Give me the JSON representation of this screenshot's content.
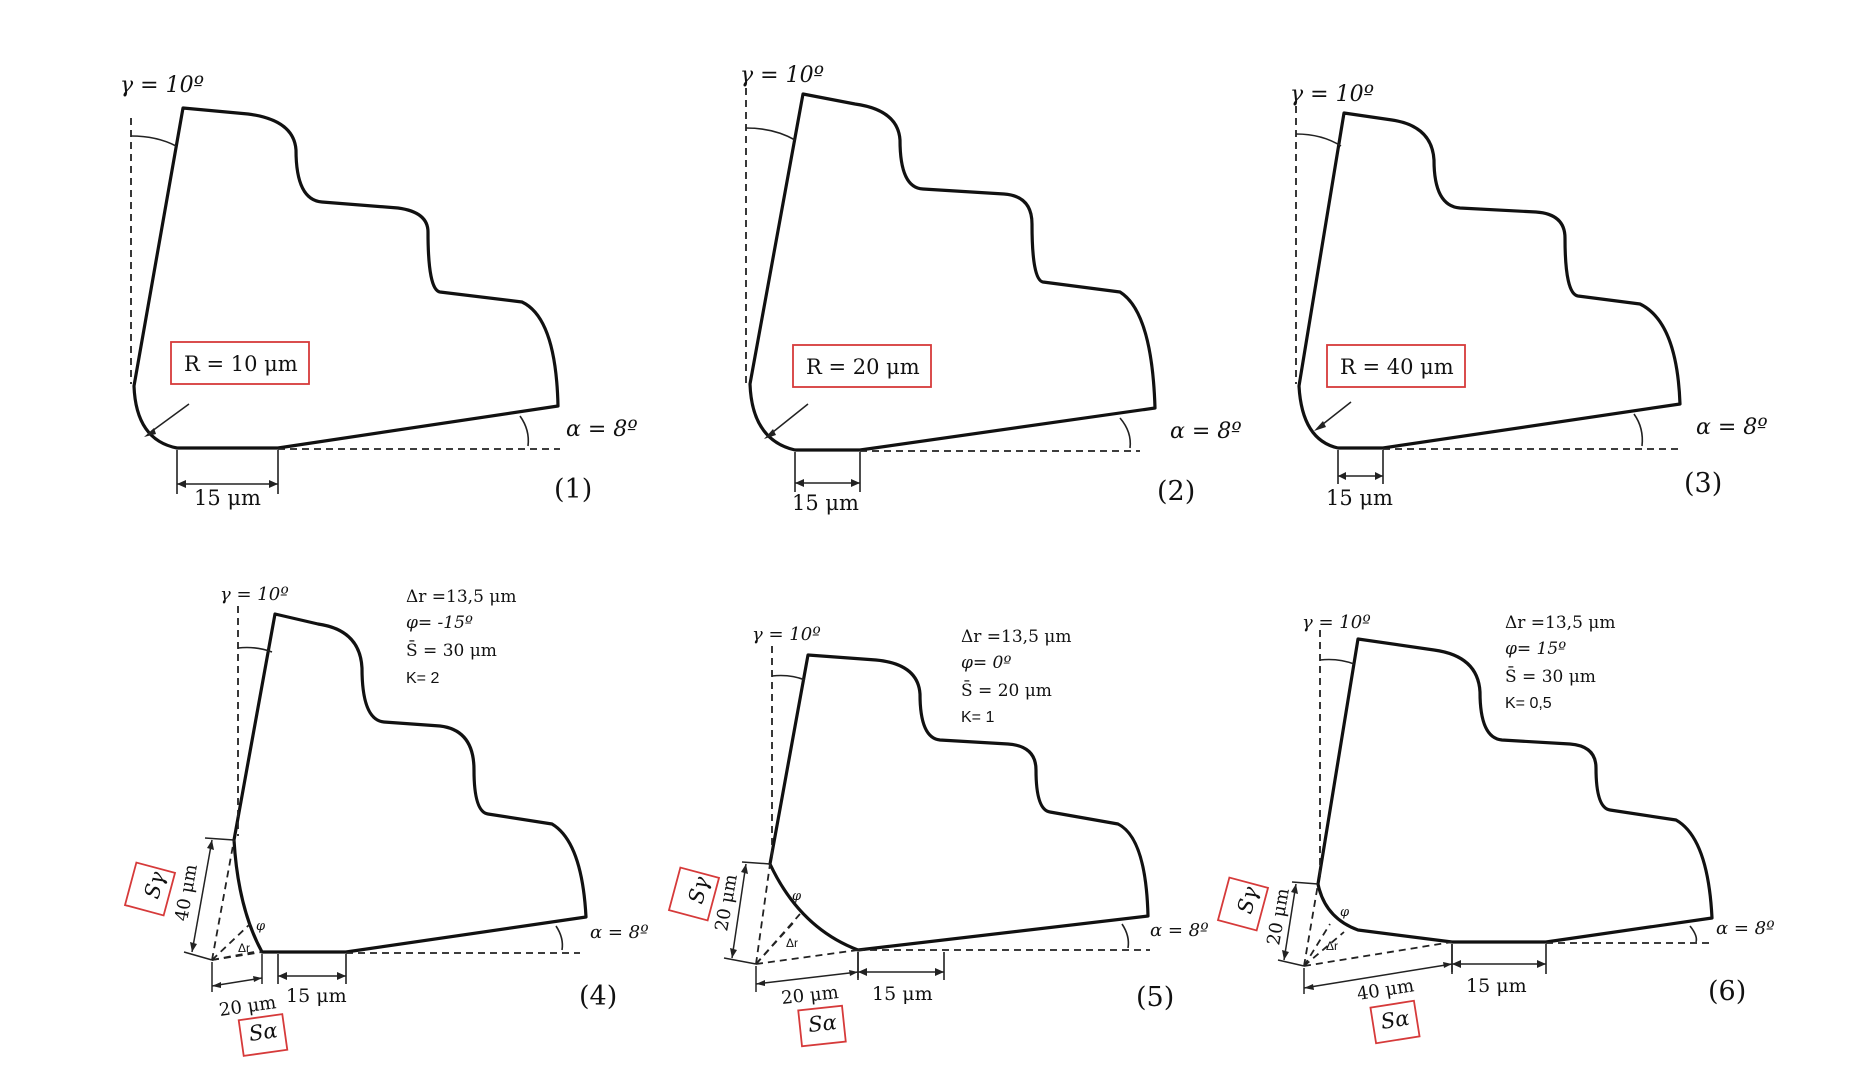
{
  "panels": [
    {
      "id": "1",
      "label": "(1)",
      "rake_angle_label": "γ = 10º",
      "clearance_angle_label": "α = 8º",
      "radius_label": "R = 10 μm",
      "flank_width_label": "15 μm"
    },
    {
      "id": "2",
      "label": "(2)",
      "rake_angle_label": "γ = 10º",
      "clearance_angle_label": "α = 8º",
      "radius_label": "R = 20 μm",
      "flank_width_label": "15 μm"
    },
    {
      "id": "3",
      "label": "(3)",
      "rake_angle_label": "γ = 10º",
      "clearance_angle_label": "α = 8º",
      "radius_label": "R = 40 μm",
      "flank_width_label": "15 μm"
    },
    {
      "id": "4",
      "label": "(4)",
      "rake_angle_label": "γ = 10º",
      "clearance_angle_label": "α = 8º",
      "params": [
        "Δr =13,5 μm",
        "φ= -15º",
        "S̄ = 30 μm",
        "K= 2"
      ],
      "s_gamma_label": "Sγ",
      "s_alpha_label": "Sα",
      "s_gamma_value": "40 μm",
      "s_alpha_value": "20 μm",
      "flank_width_label": "15 μm",
      "phi_label": "φ",
      "delta_r_label": "Δr"
    },
    {
      "id": "5",
      "label": "(5)",
      "rake_angle_label": "γ = 10º",
      "clearance_angle_label": "α = 8º",
      "params": [
        "Δr =13,5 μm",
        "φ= 0º",
        "S̄ = 20 μm",
        "K= 1"
      ],
      "s_gamma_label": "Sγ",
      "s_alpha_label": "Sα",
      "s_gamma_value": "20 μm",
      "s_alpha_value": "20 μm",
      "flank_width_label": "15 μm",
      "phi_label": "φ",
      "delta_r_label": "Δr"
    },
    {
      "id": "6",
      "label": "(6)",
      "rake_angle_label": "γ = 10º",
      "clearance_angle_label": "α = 8º",
      "params": [
        "Δr =13,5 μm",
        "φ= 15º",
        "S̄ = 30 μm",
        "K= 0,5"
      ],
      "s_gamma_label": "Sγ",
      "s_alpha_label": "Sα",
      "s_gamma_value": "20 μm",
      "s_alpha_value": "40 μm",
      "flank_width_label": "15 μm",
      "phi_label": "φ",
      "delta_r_label": "Δr"
    }
  ],
  "colors": {
    "outline": "#111111",
    "highlight_box": "#d63a3a",
    "background": "#ffffff"
  }
}
